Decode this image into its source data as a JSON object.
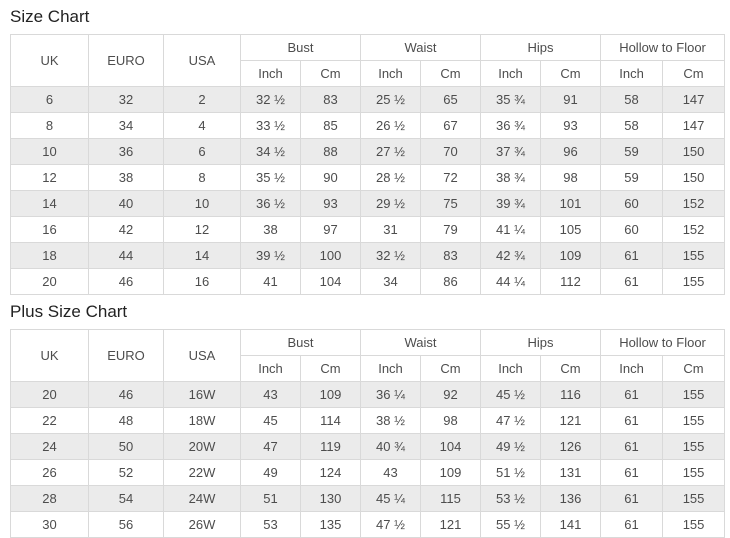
{
  "colors": {
    "stripe": "#ebebeb",
    "border": "#d9d9d9",
    "text": "#4d4d4d",
    "heading": "#222222",
    "background": "#ffffff"
  },
  "tables": [
    {
      "title": "Size Chart",
      "col_headers": [
        "UK",
        "EURO",
        "USA"
      ],
      "group_headers": [
        "Bust",
        "Waist",
        "Hips",
        "Hollow to Floor"
      ],
      "sub_headers": [
        "Inch",
        "Cm"
      ],
      "rows": [
        [
          "6",
          "32",
          "2",
          "32 ½",
          "83",
          "25 ½",
          "65",
          "35 ¾",
          "91",
          "58",
          "147"
        ],
        [
          "8",
          "34",
          "4",
          "33 ½",
          "85",
          "26 ½",
          "67",
          "36 ¾",
          "93",
          "58",
          "147"
        ],
        [
          "10",
          "36",
          "6",
          "34 ½",
          "88",
          "27 ½",
          "70",
          "37 ¾",
          "96",
          "59",
          "150"
        ],
        [
          "12",
          "38",
          "8",
          "35 ½",
          "90",
          "28 ½",
          "72",
          "38 ¾",
          "98",
          "59",
          "150"
        ],
        [
          "14",
          "40",
          "10",
          "36 ½",
          "93",
          "29 ½",
          "75",
          "39 ¾",
          "101",
          "60",
          "152"
        ],
        [
          "16",
          "42",
          "12",
          "38",
          "97",
          "31",
          "79",
          "41 ¼",
          "105",
          "60",
          "152"
        ],
        [
          "18",
          "44",
          "14",
          "39 ½",
          "100",
          "32 ½",
          "83",
          "42 ¾",
          "109",
          "61",
          "155"
        ],
        [
          "20",
          "46",
          "16",
          "41",
          "104",
          "34",
          "86",
          "44 ¼",
          "112",
          "61",
          "155"
        ]
      ]
    },
    {
      "title": "Plus Size Chart",
      "col_headers": [
        "UK",
        "EURO",
        "USA"
      ],
      "group_headers": [
        "Bust",
        "Waist",
        "Hips",
        "Hollow to Floor"
      ],
      "sub_headers": [
        "Inch",
        "Cm"
      ],
      "rows": [
        [
          "20",
          "46",
          "16W",
          "43",
          "109",
          "36 ¼",
          "92",
          "45 ½",
          "116",
          "61",
          "155"
        ],
        [
          "22",
          "48",
          "18W",
          "45",
          "114",
          "38 ½",
          "98",
          "47 ½",
          "121",
          "61",
          "155"
        ],
        [
          "24",
          "50",
          "20W",
          "47",
          "119",
          "40 ¾",
          "104",
          "49 ½",
          "126",
          "61",
          "155"
        ],
        [
          "26",
          "52",
          "22W",
          "49",
          "124",
          "43",
          "109",
          "51 ½",
          "131",
          "61",
          "155"
        ],
        [
          "28",
          "54",
          "24W",
          "51",
          "130",
          "45 ¼",
          "115",
          "53 ½",
          "136",
          "61",
          "155"
        ],
        [
          "30",
          "56",
          "26W",
          "53",
          "135",
          "47 ½",
          "121",
          "55 ½",
          "141",
          "61",
          "155"
        ]
      ]
    }
  ]
}
